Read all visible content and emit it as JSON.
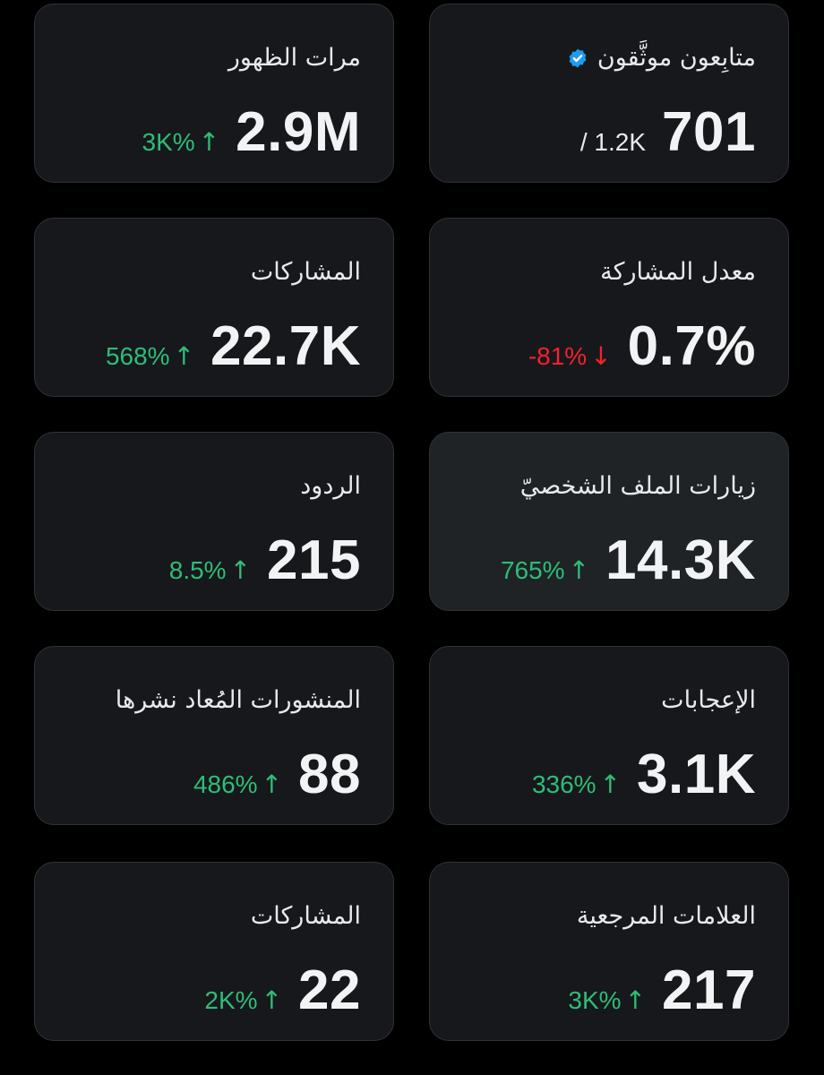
{
  "colors": {
    "background": "#000000",
    "card": "#16181c",
    "card_selected": "#1f2326",
    "border": "#2f3336",
    "positive": "#2ebd77",
    "negative": "#f4212e",
    "verified": "#1d9bf0"
  },
  "cards": [
    {
      "title": "متابِعون موثَّقون",
      "icon": "verified-badge-icon",
      "value": "701",
      "secondary": "/ 1.2K"
    },
    {
      "title": "مرات الظهور",
      "value": "2.9M",
      "change": "3K%",
      "change_arrow": "↑",
      "direction": "up"
    },
    {
      "title": "معدل المشاركة",
      "value": "0.7%",
      "change": "-81%",
      "change_arrow": "↓",
      "direction": "down"
    },
    {
      "title": "المشاركات",
      "value": "22.7K",
      "change": "568%",
      "change_arrow": "↑",
      "direction": "up"
    },
    {
      "title": "زيارات الملف الشخصيّ",
      "value": "14.3K",
      "change": "765%",
      "change_arrow": "↑",
      "direction": "up",
      "selected": true
    },
    {
      "title": "الردود",
      "value": "215",
      "change": "8.5%",
      "change_arrow": "↑",
      "direction": "up"
    },
    {
      "title": "الإعجابات",
      "value": "3.1K",
      "change": "336%",
      "change_arrow": "↑",
      "direction": "up"
    },
    {
      "title": "المنشورات المُعاد نشرها",
      "value": "88",
      "change": "486%",
      "change_arrow": "↑",
      "direction": "up"
    },
    {
      "title": "العلامات المرجعية",
      "value": "217",
      "change": "3K%",
      "change_arrow": "↑",
      "direction": "up"
    },
    {
      "title": "المشاركات",
      "value": "22",
      "change": "2K%",
      "change_arrow": "↑",
      "direction": "up"
    }
  ]
}
